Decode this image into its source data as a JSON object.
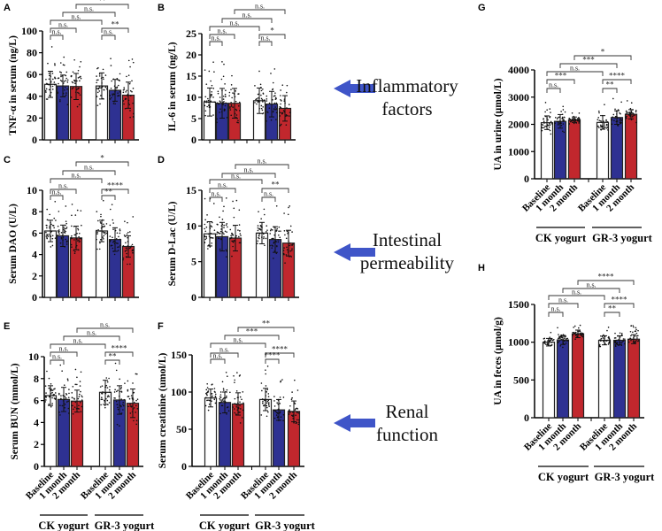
{
  "colors": {
    "baseline": "#ffffff",
    "month1": "#2e3192",
    "month2": "#c1272d",
    "arrow": "#3f55c8"
  },
  "categories": [
    "Baseline",
    "1 month",
    "2 month",
    "Baseline",
    "1 month",
    "2 month"
  ],
  "groups": [
    "CK yogurt",
    "GR-3 yogurt"
  ],
  "side_labels": [
    {
      "lines": [
        "Inflammatory",
        "factors"
      ]
    },
    {
      "lines": [
        "Intestinal",
        "permeability"
      ]
    },
    {
      "lines": [
        "Renal",
        "function"
      ]
    }
  ],
  "chart_data": [
    {
      "panel": "A",
      "type": "bar",
      "ylabel": "TNF-α in serum (ng/L)",
      "ylim": [
        0,
        100
      ],
      "yticks": [
        0,
        20,
        40,
        60,
        80,
        100
      ],
      "values": [
        51,
        49.5,
        49,
        49.5,
        45.5,
        41
      ],
      "sd": [
        12,
        10,
        12,
        12,
        10,
        12
      ],
      "comparisons": [
        [
          0,
          1,
          "n.s."
        ],
        [
          3,
          4,
          "n.s."
        ],
        [
          0,
          2,
          "n.s."
        ],
        [
          3,
          5,
          "**"
        ],
        [
          0,
          3,
          "n.s."
        ],
        [
          1,
          4,
          "n.s."
        ],
        [
          2,
          5,
          "**"
        ]
      ],
      "show_xlabels": false
    },
    {
      "panel": "B",
      "type": "bar",
      "ylabel": "IL-6 in serum (ng/L)",
      "ylim": [
        0,
        25
      ],
      "yticks": [
        0,
        5,
        10,
        15,
        20,
        25
      ],
      "values": [
        8.9,
        8.6,
        8.6,
        9.2,
        8.4,
        7.4
      ],
      "sd": [
        3.3,
        3.5,
        3.5,
        3,
        3,
        3
      ],
      "comparisons": [
        [
          0,
          1,
          "n.s."
        ],
        [
          3,
          4,
          "n.s."
        ],
        [
          0,
          2,
          "n.s."
        ],
        [
          3,
          5,
          "*"
        ],
        [
          0,
          3,
          "n.s."
        ],
        [
          1,
          4,
          "n.s."
        ],
        [
          2,
          5,
          "n.s."
        ]
      ],
      "show_xlabels": false
    },
    {
      "panel": "C",
      "type": "bar",
      "ylabel": "Serum DAO (U/L)",
      "ylim": [
        0,
        10
      ],
      "yticks": [
        0,
        2,
        4,
        6,
        8,
        10
      ],
      "values": [
        6.2,
        5.75,
        5.55,
        6.2,
        5.4,
        4.75
      ],
      "sd": [
        1,
        1,
        1.1,
        1,
        1.1,
        1
      ],
      "comparisons": [
        [
          0,
          1,
          "n.s."
        ],
        [
          3,
          4,
          "**"
        ],
        [
          0,
          2,
          "n.s."
        ],
        [
          3,
          5,
          "****"
        ],
        [
          0,
          3,
          "n.s."
        ],
        [
          1,
          4,
          "n.s."
        ],
        [
          2,
          5,
          "*"
        ]
      ],
      "show_xlabels": false
    },
    {
      "panel": "D",
      "type": "bar",
      "ylabel": "Serum D-Lac (U/L)",
      "ylim": [
        0,
        15
      ],
      "yticks": [
        0,
        5,
        10,
        15
      ],
      "values": [
        8.9,
        8.5,
        8.3,
        9.0,
        8.1,
        7.6
      ],
      "sd": [
        1.7,
        2,
        1.8,
        1.5,
        1.8,
        1.8
      ],
      "comparisons": [
        [
          0,
          1,
          "n.s."
        ],
        [
          3,
          4,
          "n.s."
        ],
        [
          0,
          2,
          "n.s."
        ],
        [
          3,
          5,
          "**"
        ],
        [
          0,
          3,
          "n.s."
        ],
        [
          1,
          4,
          "n.s."
        ],
        [
          2,
          5,
          "n.s."
        ]
      ],
      "show_xlabels": false
    },
    {
      "panel": "E",
      "type": "bar",
      "ylabel": "Serum BUN (mmol/L)",
      "ylim": [
        0,
        10
      ],
      "yticks": [
        0,
        2,
        4,
        6,
        8,
        10
      ],
      "values": [
        6.45,
        6.1,
        5.95,
        6.75,
        6.05,
        5.75
      ],
      "sd": [
        0.9,
        1.1,
        1,
        1.1,
        1.3,
        1.3
      ],
      "comparisons": [
        [
          0,
          1,
          "n.s."
        ],
        [
          3,
          4,
          "**"
        ],
        [
          0,
          2,
          "n.s."
        ],
        [
          3,
          5,
          "****"
        ],
        [
          0,
          3,
          "n.s."
        ],
        [
          1,
          4,
          "n.s."
        ],
        [
          2,
          5,
          "n.s."
        ]
      ],
      "show_xlabels": true
    },
    {
      "panel": "F",
      "type": "bar",
      "ylabel": "Serum creatinine (umol/L)",
      "ylim": [
        0,
        150
      ],
      "yticks": [
        0,
        50,
        100,
        150
      ],
      "values": [
        92,
        86,
        84,
        90,
        76,
        74
      ],
      "sd": [
        12,
        14,
        15,
        15,
        14,
        14
      ],
      "comparisons": [
        [
          0,
          1,
          "n.s."
        ],
        [
          3,
          4,
          "****"
        ],
        [
          0,
          2,
          "n.s."
        ],
        [
          3,
          5,
          "****"
        ],
        [
          0,
          3,
          "n.s."
        ],
        [
          1,
          4,
          "***"
        ],
        [
          2,
          5,
          "**"
        ]
      ],
      "show_xlabels": true
    },
    {
      "panel": "G",
      "type": "bar",
      "ylabel": "UA in urine (µmol/L)",
      "ylim": [
        0,
        4000
      ],
      "yticks": [
        0,
        1000,
        2000,
        3000,
        4000
      ],
      "values": [
        2060,
        2110,
        2170,
        2070,
        2250,
        2370
      ],
      "sd": [
        250,
        250,
        100,
        250,
        250,
        170
      ],
      "comparisons": [
        [
          0,
          1,
          "n.s."
        ],
        [
          3,
          4,
          "**"
        ],
        [
          0,
          2,
          "***"
        ],
        [
          3,
          5,
          "****"
        ],
        [
          0,
          3,
          "n.s."
        ],
        [
          1,
          4,
          "***"
        ],
        [
          2,
          5,
          "*"
        ]
      ],
      "show_xlabels": true
    },
    {
      "panel": "H",
      "type": "bar",
      "ylabel": "UA in feces (µmol/g)",
      "ylim": [
        0,
        1500
      ],
      "yticks": [
        0,
        500,
        1000,
        1500
      ],
      "values": [
        1000,
        1030,
        1110,
        1025,
        1025,
        1040
      ],
      "sd": [
        50,
        60,
        50,
        60,
        60,
        60
      ],
      "comparisons": [
        [
          0,
          1,
          "n.s."
        ],
        [
          3,
          4,
          "**"
        ],
        [
          0,
          2,
          "n.s."
        ],
        [
          3,
          5,
          "****"
        ],
        [
          0,
          3,
          "n.s."
        ],
        [
          1,
          4,
          "n.s."
        ],
        [
          2,
          5,
          "****"
        ]
      ],
      "show_xlabels": true
    }
  ]
}
